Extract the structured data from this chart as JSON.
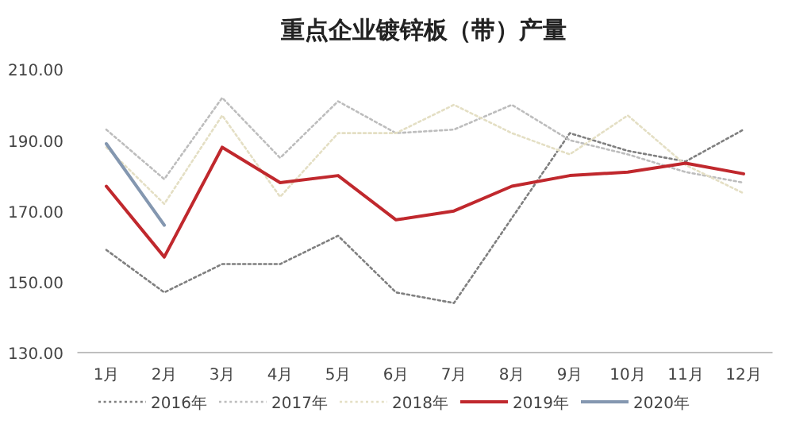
{
  "chart_data": {
    "type": "line",
    "title": "重点企业镀锌板（带）产量",
    "categories": [
      "1月",
      "2月",
      "3月",
      "4月",
      "5月",
      "6月",
      "7月",
      "8月",
      "9月",
      "10月",
      "11月",
      "12月"
    ],
    "series": [
      {
        "name": "2016年",
        "color": "#7f7f7f",
        "line_style": "dotted",
        "values": [
          159,
          147,
          155,
          155,
          163,
          147,
          144,
          168,
          192,
          187,
          184,
          193
        ]
      },
      {
        "name": "2017年",
        "color": "#bdbdbd",
        "line_style": "dotted",
        "values": [
          193,
          179,
          202,
          185,
          201,
          192,
          193,
          200,
          190,
          186,
          181,
          178
        ]
      },
      {
        "name": "2018年",
        "color": "#e4dfc4",
        "line_style": "dotted",
        "values": [
          188,
          172,
          197,
          174,
          192,
          192,
          200,
          192,
          186,
          197,
          183,
          175
        ]
      },
      {
        "name": "2019年",
        "color": "#c0282d",
        "line_style": "solid",
        "values": [
          177,
          157,
          188,
          178,
          180,
          167.5,
          170,
          177,
          180,
          181,
          183.5,
          180.5
        ]
      },
      {
        "name": "2020年",
        "color": "#8497b0",
        "line_style": "solid",
        "values": [
          189,
          166,
          null,
          null,
          null,
          null,
          null,
          null,
          null,
          null,
          null,
          null
        ]
      }
    ],
    "ylim": [
      130,
      210
    ],
    "yticks": [
      {
        "value": 130,
        "label": "130.00"
      },
      {
        "value": 150,
        "label": "150.00"
      },
      {
        "value": 170,
        "label": "170.00"
      },
      {
        "value": 190,
        "label": "190.00"
      },
      {
        "value": 210,
        "label": "210.00"
      }
    ],
    "grid": false,
    "legend": "bottom",
    "marker": "none"
  }
}
